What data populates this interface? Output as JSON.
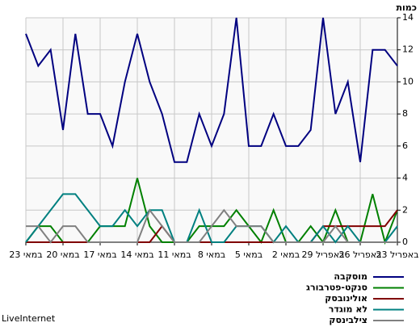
{
  "chart_data": {
    "type": "line",
    "title": "כמות",
    "categories": [
      "23 באפריל",
      null,
      null,
      "26 באפריל",
      null,
      null,
      "29 באפריל",
      null,
      null,
      "2 במאי",
      null,
      null,
      "5 במאי",
      null,
      null,
      "8 במאי",
      null,
      null,
      "11 במאי",
      null,
      null,
      "14 במאי",
      null,
      null,
      "17 במאי",
      null,
      null,
      "20 במאי",
      null,
      null,
      "23 במאי"
    ],
    "x_reversed": true,
    "y_axis_side": "right",
    "grid": true,
    "legend": "bottom-right",
    "ylim": [
      0,
      14
    ],
    "yticks": [
      0,
      2,
      4,
      6,
      8,
      10,
      12,
      14
    ],
    "series": [
      {
        "name": "מוסקבה",
        "color": "#000080",
        "values": [
          11,
          12,
          12,
          5,
          10,
          8,
          14,
          7,
          6,
          6,
          8,
          6,
          6,
          14,
          8,
          6,
          8,
          5,
          5,
          8,
          10,
          13,
          10,
          6,
          8,
          8,
          13,
          7,
          12,
          11,
          13
        ]
      },
      {
        "name": "סנקט-פטרבורג",
        "color": "#008000",
        "values": [
          2,
          0,
          3,
          0,
          0,
          2,
          0,
          1,
          0,
          0,
          2,
          0,
          1,
          2,
          1,
          1,
          1,
          0,
          0,
          0,
          1,
          4,
          1,
          1,
          1,
          0,
          0,
          0,
          1,
          1,
          0
        ]
      },
      {
        "name": "אולינובסק",
        "color": "#800000",
        "values": [
          2,
          1,
          1,
          1,
          1,
          1,
          1,
          0,
          0,
          0,
          0,
          0,
          0,
          0,
          0,
          0,
          0,
          0,
          0,
          1,
          0,
          0,
          0,
          0,
          0,
          0,
          0,
          0,
          0,
          0,
          0
        ]
      },
      {
        "name": "לא מוגדר",
        "color": "#008080",
        "values": [
          1,
          0,
          0,
          0,
          1,
          0,
          1,
          0,
          0,
          1,
          0,
          1,
          1,
          1,
          0,
          0,
          2,
          0,
          0,
          2,
          2,
          1,
          2,
          1,
          1,
          2,
          3,
          3,
          2,
          1,
          0
        ]
      },
      {
        "name": "צילבינסק",
        "color": "#808080",
        "values": [
          0,
          0,
          0,
          0,
          0,
          1,
          0,
          0,
          0,
          0,
          0,
          1,
          1,
          1,
          2,
          1,
          0,
          0,
          0,
          1,
          2,
          0,
          0,
          0,
          0,
          0,
          1,
          1,
          0,
          1,
          1
        ]
      }
    ]
  },
  "footer": "LiveInternet"
}
